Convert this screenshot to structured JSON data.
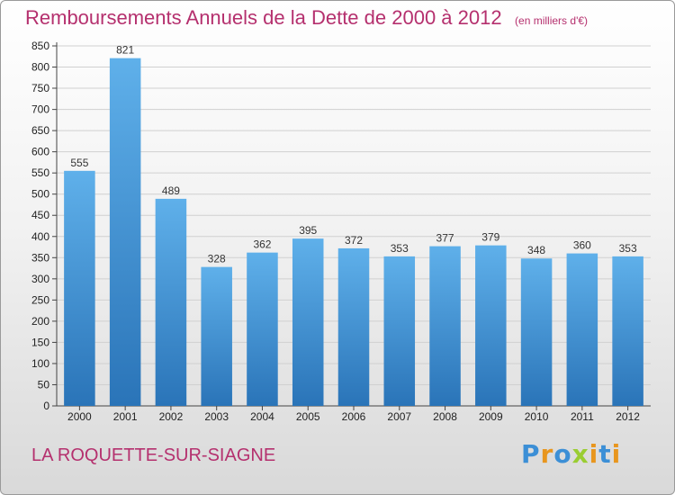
{
  "chart_data": {
    "type": "bar",
    "title": "Remboursements Annuels de la Dette de 2000 à 2012",
    "unit_note": "(en milliers d'€)",
    "categories": [
      "2000",
      "2001",
      "2002",
      "2003",
      "2004",
      "2005",
      "2006",
      "2007",
      "2008",
      "2009",
      "2010",
      "2011",
      "2012"
    ],
    "values": [
      555,
      821,
      489,
      328,
      362,
      395,
      372,
      353,
      377,
      379,
      348,
      360,
      353
    ],
    "ylim": [
      0,
      850
    ],
    "yticks": [
      0,
      50,
      100,
      150,
      200,
      250,
      300,
      350,
      400,
      450,
      500,
      550,
      600,
      650,
      700,
      750,
      800,
      850
    ],
    "grid": true,
    "bar_color": "#4a9fe0",
    "bar_color_dark": "#2a74b8",
    "xlabel": "",
    "ylabel": ""
  },
  "footer": {
    "commune": "LA ROQUETTE-SUR-SIAGNE",
    "logo_text": "Proxiti",
    "logo_colors": [
      "#3c8fd6",
      "#e8961e",
      "#3c8fd6",
      "#9acd32",
      "#e8961e",
      "#3c8fd6",
      "#e8961e"
    ]
  },
  "colors": {
    "title": "#b5306e",
    "grid": "#d0d0d0"
  }
}
